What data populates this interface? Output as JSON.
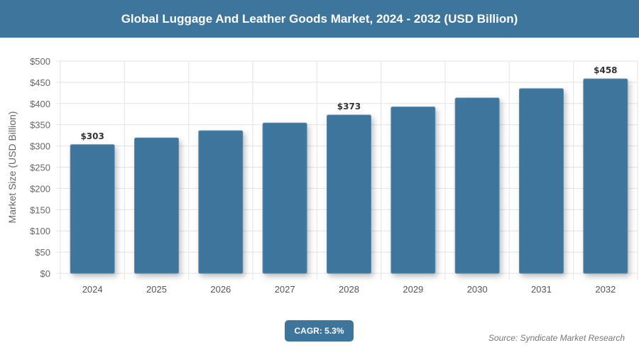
{
  "header": {
    "title": "Global Luggage And Leather Goods Market, 2024 - 2032 (USD Billion)"
  },
  "footer": {
    "cagr": "CAGR: 5.3%",
    "source": "Source: Syndicate Market Research"
  },
  "chart_data": {
    "type": "bar",
    "title": "Global Luggage And Leather Goods Market, 2024 - 2032 (USD Billion)",
    "ylabel": "Market Size (USD Billion)",
    "xlabel": "",
    "categories": [
      "2024",
      "2025",
      "2026",
      "2027",
      "2028",
      "2029",
      "2030",
      "2031",
      "2032"
    ],
    "values": [
      303,
      319,
      336,
      354,
      373,
      392,
      413,
      435,
      458
    ],
    "data_labels": {
      "0": "$303",
      "4": "$373",
      "8": "$458"
    },
    "ylim": [
      0,
      500
    ],
    "yticks": [
      0,
      50,
      100,
      150,
      200,
      250,
      300,
      350,
      400,
      450,
      500
    ],
    "ytick_labels": [
      "$0",
      "$50",
      "$100",
      "$150",
      "$200",
      "$250",
      "$300",
      "$350",
      "$400",
      "$450",
      "$500"
    ],
    "grid": true,
    "bar_color": "#3e759c"
  }
}
